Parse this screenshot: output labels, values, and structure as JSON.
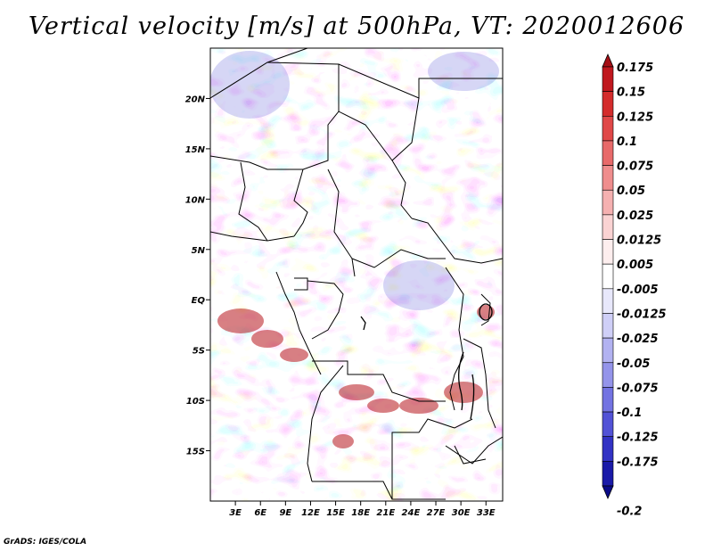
{
  "chart_data": {
    "type": "heatmap",
    "title": "Vertical velocity [m/s] at 500hPa, VT: 2020012606",
    "xlabel": "",
    "ylabel": "",
    "x_ticks": [
      "3E",
      "6E",
      "9E",
      "12E",
      "15E",
      "18E",
      "21E",
      "24E",
      "27E",
      "30E",
      "33E"
    ],
    "x_tick_values": [
      3,
      6,
      9,
      12,
      15,
      18,
      21,
      24,
      27,
      30,
      33
    ],
    "y_ticks": [
      "20N",
      "15N",
      "10N",
      "5N",
      "EQ",
      "5S",
      "10S",
      "15S"
    ],
    "y_tick_values": [
      20,
      15,
      10,
      5,
      0,
      -5,
      -10,
      -15
    ],
    "xlim": [
      0,
      35
    ],
    "ylim": [
      -20,
      25
    ],
    "colorbar": {
      "labels": [
        "0.175",
        "0.15",
        "0.125",
        "0.1",
        "0.075",
        "0.05",
        "0.025",
        "0.0125",
        "0.005",
        "-0.005",
        "-0.0125",
        "-0.025",
        "-0.05",
        "-0.075",
        "-0.1",
        "-0.125",
        "-0.175",
        "-0.2"
      ],
      "colors": [
        "#a50f15",
        "#c0181e",
        "#d42c2c",
        "#e04848",
        "#e86a6a",
        "#ef8d8d",
        "#f5b1b1",
        "#fad3d3",
        "#fdeeee",
        "#ffffff",
        "#e8e8fb",
        "#cfcff7",
        "#b2b2f1",
        "#9494ea",
        "#7373e2",
        "#5252d6",
        "#3232c4",
        "#1a1aa8",
        "#0a0a88"
      ]
    }
  },
  "footer": {
    "credit": "GrADS: IGES/COLA"
  }
}
